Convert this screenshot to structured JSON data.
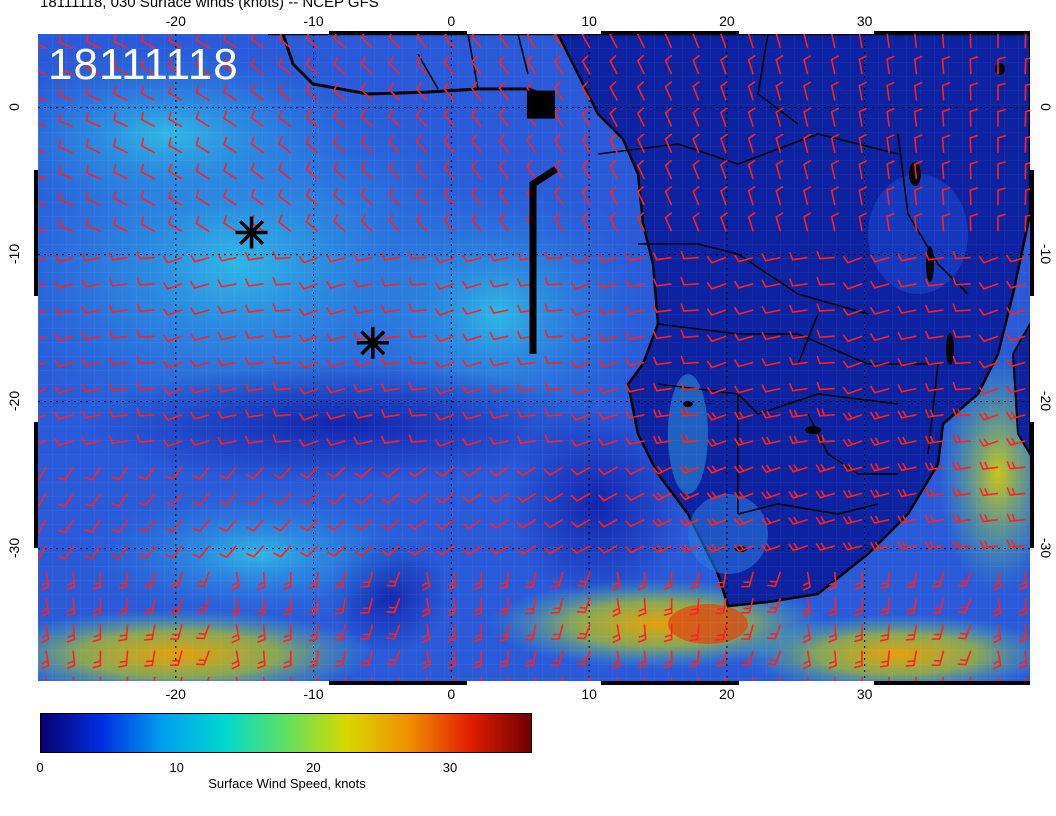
{
  "title": "18111118, 030 Surface winds (knots) -- NCEP GFS",
  "stamp": "18111118",
  "map": {
    "lon_range": [
      -30,
      42
    ],
    "lat_range": [
      5,
      -39
    ],
    "ocean_color": "#2a48cc",
    "land_color": "#0a1c8c",
    "barb_color": "#ff2020",
    "coast_color": "#000000"
  },
  "axes": {
    "lon_ticks_top": [
      "-20",
      "-10",
      "0",
      "10",
      "20",
      "30"
    ],
    "lon_ticks_bottom": [
      "-20",
      "-10",
      "0",
      "10",
      "20",
      "30"
    ],
    "lat_ticks_left": [
      "0",
      "-10",
      "-20",
      "-30"
    ],
    "lat_ticks_right": [
      "0",
      "-10",
      "-20",
      "-30"
    ],
    "lon_tick_values": [
      -20,
      -10,
      0,
      10,
      20,
      30
    ],
    "lat_tick_values": [
      0,
      -10,
      -20,
      -30
    ]
  },
  "markers": [
    {
      "name": "asterisk-marker-1",
      "lon": -14.5,
      "lat": -8.5
    },
    {
      "name": "asterisk-marker-2",
      "lon": -5.7,
      "lat": -16
    },
    {
      "name": "square-marker",
      "lon": 6.5,
      "lat": 0.2
    }
  ],
  "colorbar": {
    "labels": [
      "0",
      "10",
      "20",
      "30"
    ],
    "min": 0,
    "max": 36,
    "title": "Surface Wind Speed, knots",
    "stops": [
      "#080070",
      "#0030e0",
      "#00a0f0",
      "#00d8d0",
      "#60e060",
      "#d8d800",
      "#f09000",
      "#e02000",
      "#700000"
    ]
  }
}
